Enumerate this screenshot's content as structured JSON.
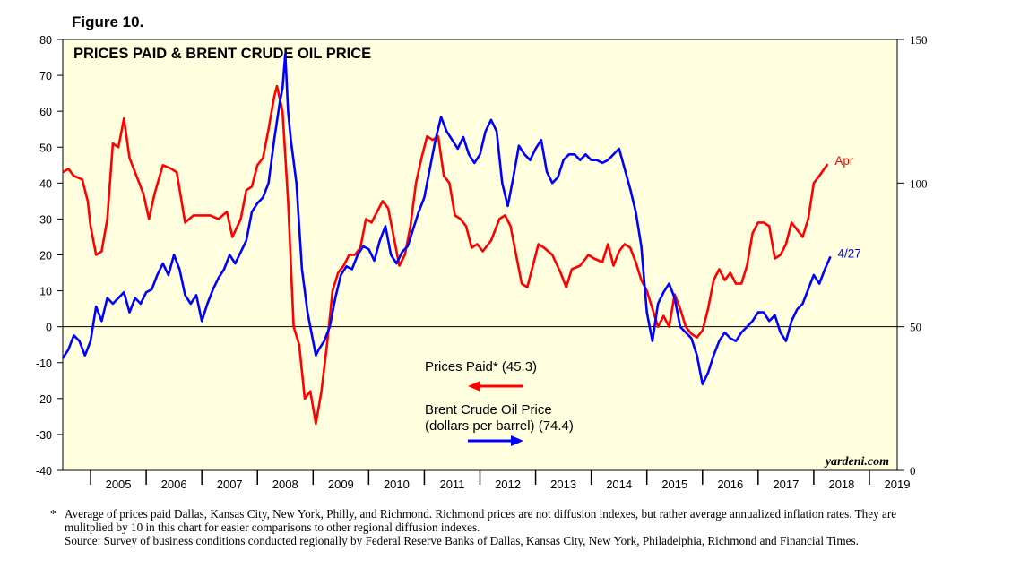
{
  "figure_label": "Figure 10.",
  "chart_data": {
    "type": "line",
    "title": "PRICES PAID & BRENT CRUDE OIL PRICE",
    "left_axis": {
      "min": -40,
      "max": 80,
      "ticks": [
        80,
        70,
        60,
        50,
        40,
        30,
        20,
        10,
        0,
        -10,
        -20,
        -30,
        -40
      ]
    },
    "right_axis": {
      "min": 0,
      "max": 150,
      "ticks": [
        150,
        100,
        50,
        0
      ]
    },
    "x_axis": {
      "min": 2004.5,
      "max": 2019.5,
      "years": [
        "2005",
        "2006",
        "2007",
        "2008",
        "2009",
        "2010",
        "2011",
        "2012",
        "2013",
        "2014",
        "2015",
        "2016",
        "2017",
        "2018",
        "2019"
      ]
    },
    "zero_line": 0,
    "series": [
      {
        "name": "Prices Paid",
        "legend": "Prices Paid* (45.3)",
        "axis": "left",
        "color": "#ff0000",
        "end_label": "Apr",
        "points": [
          [
            2004.5,
            43
          ],
          [
            2004.6,
            44
          ],
          [
            2004.7,
            42
          ],
          [
            2004.85,
            41
          ],
          [
            2004.95,
            35
          ],
          [
            2005.0,
            28
          ],
          [
            2005.1,
            20
          ],
          [
            2005.2,
            21
          ],
          [
            2005.3,
            30
          ],
          [
            2005.4,
            51
          ],
          [
            2005.5,
            50
          ],
          [
            2005.6,
            58
          ],
          [
            2005.7,
            47
          ],
          [
            2005.85,
            41
          ],
          [
            2005.95,
            37
          ],
          [
            2006.05,
            30
          ],
          [
            2006.15,
            37
          ],
          [
            2006.3,
            45
          ],
          [
            2006.45,
            44
          ],
          [
            2006.55,
            43
          ],
          [
            2006.7,
            29
          ],
          [
            2006.85,
            31
          ],
          [
            2007.0,
            31
          ],
          [
            2007.15,
            31
          ],
          [
            2007.3,
            30
          ],
          [
            2007.45,
            32
          ],
          [
            2007.55,
            25
          ],
          [
            2007.7,
            30
          ],
          [
            2007.8,
            38
          ],
          [
            2007.9,
            39
          ],
          [
            2008.0,
            45
          ],
          [
            2008.1,
            47
          ],
          [
            2008.2,
            55
          ],
          [
            2008.3,
            64
          ],
          [
            2008.35,
            67
          ],
          [
            2008.45,
            60
          ],
          [
            2008.55,
            35
          ],
          [
            2008.65,
            0
          ],
          [
            2008.75,
            -5
          ],
          [
            2008.85,
            -20
          ],
          [
            2008.95,
            -18
          ],
          [
            2009.05,
            -27
          ],
          [
            2009.15,
            -18
          ],
          [
            2009.25,
            -5
          ],
          [
            2009.35,
            10
          ],
          [
            2009.45,
            15
          ],
          [
            2009.55,
            17
          ],
          [
            2009.65,
            20
          ],
          [
            2009.75,
            20
          ],
          [
            2009.85,
            22
          ],
          [
            2009.95,
            30
          ],
          [
            2010.05,
            29
          ],
          [
            2010.15,
            32
          ],
          [
            2010.25,
            35
          ],
          [
            2010.35,
            33
          ],
          [
            2010.45,
            25
          ],
          [
            2010.55,
            17
          ],
          [
            2010.65,
            20
          ],
          [
            2010.75,
            28
          ],
          [
            2010.85,
            40
          ],
          [
            2010.95,
            47
          ],
          [
            2011.05,
            53
          ],
          [
            2011.15,
            52
          ],
          [
            2011.25,
            53
          ],
          [
            2011.35,
            42
          ],
          [
            2011.45,
            40
          ],
          [
            2011.55,
            31
          ],
          [
            2011.65,
            30
          ],
          [
            2011.75,
            28
          ],
          [
            2011.85,
            22
          ],
          [
            2011.95,
            23
          ],
          [
            2012.05,
            21
          ],
          [
            2012.2,
            24
          ],
          [
            2012.35,
            30
          ],
          [
            2012.45,
            31
          ],
          [
            2012.55,
            28
          ],
          [
            2012.65,
            20
          ],
          [
            2012.75,
            12
          ],
          [
            2012.85,
            11
          ],
          [
            2012.95,
            17
          ],
          [
            2013.05,
            23
          ],
          [
            2013.15,
            22
          ],
          [
            2013.3,
            20
          ],
          [
            2013.45,
            15
          ],
          [
            2013.55,
            11
          ],
          [
            2013.65,
            16
          ],
          [
            2013.8,
            17
          ],
          [
            2013.95,
            20
          ],
          [
            2014.05,
            19
          ],
          [
            2014.2,
            18
          ],
          [
            2014.3,
            23
          ],
          [
            2014.4,
            17
          ],
          [
            2014.5,
            21
          ],
          [
            2014.6,
            23
          ],
          [
            2014.7,
            22
          ],
          [
            2014.8,
            18
          ],
          [
            2014.9,
            13
          ],
          [
            2015.0,
            10
          ],
          [
            2015.1,
            5
          ],
          [
            2015.2,
            0
          ],
          [
            2015.3,
            3
          ],
          [
            2015.4,
            0
          ],
          [
            2015.5,
            9
          ],
          [
            2015.6,
            5
          ],
          [
            2015.7,
            0
          ],
          [
            2015.8,
            -2
          ],
          [
            2015.9,
            -3
          ],
          [
            2016.0,
            -1
          ],
          [
            2016.1,
            5
          ],
          [
            2016.2,
            13
          ],
          [
            2016.3,
            16
          ],
          [
            2016.4,
            13
          ],
          [
            2016.5,
            15
          ],
          [
            2016.6,
            12
          ],
          [
            2016.7,
            12
          ],
          [
            2016.8,
            17
          ],
          [
            2016.9,
            26
          ],
          [
            2017.0,
            29
          ],
          [
            2017.1,
            29
          ],
          [
            2017.2,
            28
          ],
          [
            2017.3,
            19
          ],
          [
            2017.4,
            20
          ],
          [
            2017.5,
            23
          ],
          [
            2017.6,
            29
          ],
          [
            2017.7,
            27
          ],
          [
            2017.8,
            25
          ],
          [
            2017.9,
            30
          ],
          [
            2018.0,
            40
          ],
          [
            2018.1,
            42
          ],
          [
            2018.25,
            45.3
          ]
        ]
      },
      {
        "name": "Brent Crude Oil Price",
        "legend_line1": "Brent Crude Oil Price",
        "legend_line2": "(dollars per barrel) (74.4)",
        "axis": "right",
        "color": "#0000ff",
        "end_label": "4/27",
        "points": [
          [
            2004.5,
            39
          ],
          [
            2004.6,
            42
          ],
          [
            2004.7,
            47
          ],
          [
            2004.8,
            45
          ],
          [
            2004.9,
            40
          ],
          [
            2005.0,
            45
          ],
          [
            2005.1,
            57
          ],
          [
            2005.2,
            52
          ],
          [
            2005.3,
            60
          ],
          [
            2005.4,
            58
          ],
          [
            2005.5,
            60
          ],
          [
            2005.6,
            62
          ],
          [
            2005.7,
            55
          ],
          [
            2005.8,
            60
          ],
          [
            2005.9,
            58
          ],
          [
            2006.0,
            62
          ],
          [
            2006.1,
            63
          ],
          [
            2006.2,
            68
          ],
          [
            2006.3,
            72
          ],
          [
            2006.4,
            68
          ],
          [
            2006.5,
            75
          ],
          [
            2006.6,
            70
          ],
          [
            2006.7,
            61
          ],
          [
            2006.8,
            58
          ],
          [
            2006.9,
            61
          ],
          [
            2007.0,
            52
          ],
          [
            2007.1,
            58
          ],
          [
            2007.2,
            63
          ],
          [
            2007.3,
            67
          ],
          [
            2007.4,
            70
          ],
          [
            2007.5,
            75
          ],
          [
            2007.6,
            72
          ],
          [
            2007.7,
            76
          ],
          [
            2007.8,
            80
          ],
          [
            2007.9,
            90
          ],
          [
            2008.0,
            93
          ],
          [
            2008.1,
            95
          ],
          [
            2008.2,
            100
          ],
          [
            2008.3,
            115
          ],
          [
            2008.4,
            128
          ],
          [
            2008.45,
            133
          ],
          [
            2008.5,
            145
          ],
          [
            2008.55,
            125
          ],
          [
            2008.6,
            115
          ],
          [
            2008.7,
            100
          ],
          [
            2008.8,
            70
          ],
          [
            2008.9,
            55
          ],
          [
            2009.0,
            45
          ],
          [
            2009.05,
            40
          ],
          [
            2009.1,
            42
          ],
          [
            2009.2,
            45
          ],
          [
            2009.3,
            50
          ],
          [
            2009.4,
            60
          ],
          [
            2009.5,
            68
          ],
          [
            2009.6,
            71
          ],
          [
            2009.7,
            70
          ],
          [
            2009.8,
            75
          ],
          [
            2009.9,
            78
          ],
          [
            2010.0,
            77
          ],
          [
            2010.1,
            73
          ],
          [
            2010.2,
            80
          ],
          [
            2010.3,
            85
          ],
          [
            2010.4,
            75
          ],
          [
            2010.5,
            72
          ],
          [
            2010.6,
            76
          ],
          [
            2010.7,
            78
          ],
          [
            2010.8,
            84
          ],
          [
            2010.9,
            90
          ],
          [
            2011.0,
            95
          ],
          [
            2011.1,
            105
          ],
          [
            2011.2,
            115
          ],
          [
            2011.3,
            123
          ],
          [
            2011.4,
            118
          ],
          [
            2011.5,
            115
          ],
          [
            2011.6,
            112
          ],
          [
            2011.7,
            116
          ],
          [
            2011.8,
            110
          ],
          [
            2011.9,
            107
          ],
          [
            2012.0,
            110
          ],
          [
            2012.1,
            118
          ],
          [
            2012.2,
            122
          ],
          [
            2012.3,
            118
          ],
          [
            2012.4,
            100
          ],
          [
            2012.5,
            92
          ],
          [
            2012.6,
            102
          ],
          [
            2012.7,
            113
          ],
          [
            2012.8,
            110
          ],
          [
            2012.9,
            108
          ],
          [
            2013.0,
            112
          ],
          [
            2013.1,
            115
          ],
          [
            2013.2,
            104
          ],
          [
            2013.3,
            100
          ],
          [
            2013.4,
            102
          ],
          [
            2013.5,
            108
          ],
          [
            2013.6,
            110
          ],
          [
            2013.7,
            110
          ],
          [
            2013.8,
            108
          ],
          [
            2013.9,
            110
          ],
          [
            2014.0,
            108
          ],
          [
            2014.1,
            108
          ],
          [
            2014.2,
            107
          ],
          [
            2014.3,
            108
          ],
          [
            2014.4,
            110
          ],
          [
            2014.5,
            112
          ],
          [
            2014.6,
            105
          ],
          [
            2014.7,
            98
          ],
          [
            2014.8,
            90
          ],
          [
            2014.9,
            78
          ],
          [
            2015.0,
            55
          ],
          [
            2015.1,
            45
          ],
          [
            2015.2,
            58
          ],
          [
            2015.3,
            62
          ],
          [
            2015.4,
            65
          ],
          [
            2015.5,
            60
          ],
          [
            2015.6,
            50
          ],
          [
            2015.7,
            48
          ],
          [
            2015.8,
            46
          ],
          [
            2015.9,
            40
          ],
          [
            2016.0,
            30
          ],
          [
            2016.1,
            34
          ],
          [
            2016.2,
            40
          ],
          [
            2016.3,
            45
          ],
          [
            2016.4,
            48
          ],
          [
            2016.5,
            46
          ],
          [
            2016.6,
            45
          ],
          [
            2016.7,
            48
          ],
          [
            2016.8,
            50
          ],
          [
            2016.9,
            52
          ],
          [
            2017.0,
            55
          ],
          [
            2017.1,
            55
          ],
          [
            2017.2,
            52
          ],
          [
            2017.3,
            54
          ],
          [
            2017.4,
            48
          ],
          [
            2017.5,
            45
          ],
          [
            2017.6,
            52
          ],
          [
            2017.7,
            56
          ],
          [
            2017.8,
            58
          ],
          [
            2017.9,
            63
          ],
          [
            2018.0,
            68
          ],
          [
            2018.1,
            65
          ],
          [
            2018.2,
            70
          ],
          [
            2018.3,
            74.4
          ]
        ]
      }
    ]
  },
  "legend": {
    "prices_paid": "Prices Paid* (45.3)",
    "brent_line1": "Brent Crude Oil Price",
    "brent_line2": "(dollars per barrel) (74.4)"
  },
  "watermark": "yardeni.com",
  "footnote": {
    "star": "*",
    "text": "Average of prices paid Dallas, Kansas City, New York, Philly, and Richmond. Richmond prices are not diffusion indexes, but rather average annualized inflation rates. They are mulitplied by 10 in this chart for easier comparisons to other regional diffusion indexes.",
    "source": "Source: Survey of business conditions conducted regionally by Federal Reserve Banks of Dallas, Kansas City, New York, Philadelphia, Richmond and Financial Times."
  }
}
